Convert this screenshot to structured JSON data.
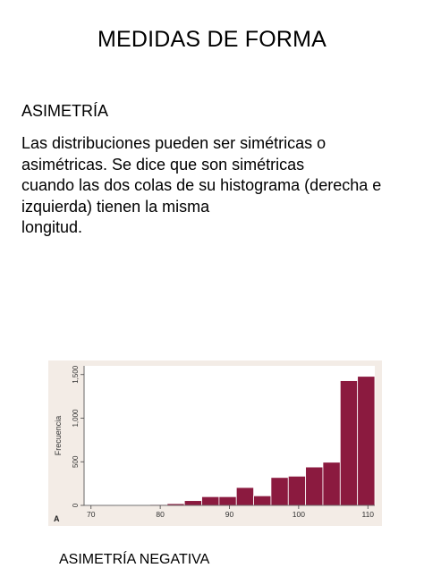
{
  "slide": {
    "title": "MEDIDAS DE FORMA",
    "subtitle": "ASIMETRÍA",
    "body_lines": [
      "Las distribuciones pueden ser simétricas o",
      "asimétricas. Se dice que son simétricas",
      "cuando las dos colas de su histograma (derecha e",
      "izquierda) tienen la misma",
      "longitud."
    ],
    "caption": "ASIMETRÍA NEGATIVA"
  },
  "chart_data": {
    "type": "bar",
    "panel_label": "A",
    "ylabel": "Frecuencia",
    "xlim": [
      69,
      111
    ],
    "ylim": [
      0,
      1600
    ],
    "x_ticks": [
      "70",
      "80",
      "90",
      "100",
      "110"
    ],
    "y_ticks": [
      "0",
      "500",
      "1,000",
      "1,500"
    ],
    "bin_width": 2.5,
    "bins": [
      {
        "start": 73.5,
        "value": 3
      },
      {
        "start": 76.0,
        "value": 5
      },
      {
        "start": 78.5,
        "value": 10
      },
      {
        "start": 81.0,
        "value": 20
      },
      {
        "start": 83.5,
        "value": 55
      },
      {
        "start": 86.0,
        "value": 100
      },
      {
        "start": 88.5,
        "value": 100
      },
      {
        "start": 91.0,
        "value": 205
      },
      {
        "start": 93.5,
        "value": 110
      },
      {
        "start": 96.0,
        "value": 320
      },
      {
        "start": 98.5,
        "value": 335
      },
      {
        "start": 101.0,
        "value": 440
      },
      {
        "start": 103.5,
        "value": 495
      },
      {
        "start": 106.0,
        "value": 1430
      },
      {
        "start": 108.5,
        "value": 1480
      }
    ],
    "colors": {
      "bar": "#8b1a3f",
      "bar_edge": "#ffffff",
      "frame_bg": "#f3ece6",
      "plot_bg": "#ffffff"
    },
    "grid": false,
    "legend": "none"
  }
}
